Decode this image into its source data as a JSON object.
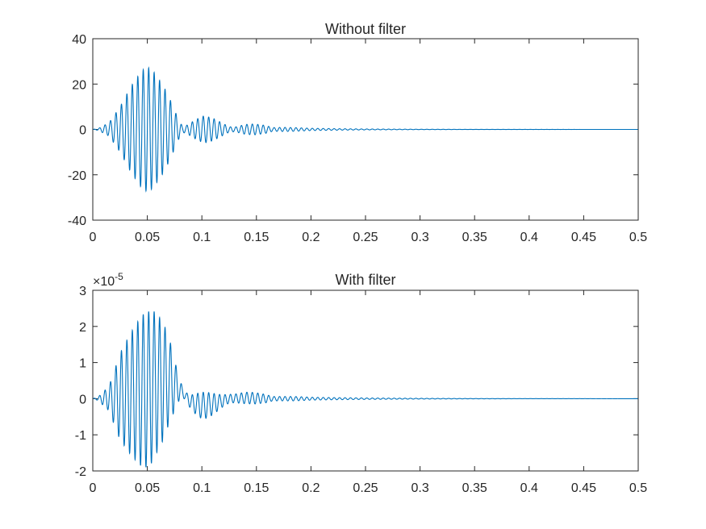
{
  "figure": {
    "background": "#ffffff",
    "axis_color": "#262626",
    "series_color": "#0072BD"
  },
  "chart_data": [
    {
      "type": "line",
      "title": "Without filter",
      "xlabel": "",
      "ylabel": "",
      "xlim": [
        0,
        0.5
      ],
      "ylim": [
        -40,
        40
      ],
      "xticks": [
        0,
        0.05,
        0.1,
        0.15,
        0.2,
        0.25,
        0.3,
        0.35,
        0.4,
        0.45,
        0.5
      ],
      "xtick_labels": [
        "0",
        "0.05",
        "0.1",
        "0.15",
        "0.2",
        "0.25",
        "0.3",
        "0.35",
        "0.4",
        "0.45",
        "0.5"
      ],
      "yticks": [
        -40,
        -20,
        0,
        20,
        40
      ],
      "ytick_labels": [
        "-40",
        "-20",
        "0",
        "20",
        "40"
      ],
      "y_exponent_base": "",
      "y_exponent": "",
      "grid": false,
      "series": [
        {
          "color": "#0072BD",
          "oscillation_frequency_hz": 200,
          "envelope": [
            [
              0,
              0
            ],
            [
              0.005,
              0.4
            ],
            [
              0.015,
              3
            ],
            [
              0.025,
              10
            ],
            [
              0.035,
              19
            ],
            [
              0.045,
              26
            ],
            [
              0.05,
              27.5
            ],
            [
              0.055,
              26
            ],
            [
              0.065,
              19
            ],
            [
              0.072,
              12
            ],
            [
              0.078,
              5
            ],
            [
              0.082,
              1.5
            ],
            [
              0.085,
              1.5
            ],
            [
              0.095,
              4.5
            ],
            [
              0.102,
              6
            ],
            [
              0.11,
              5
            ],
            [
              0.118,
              3
            ],
            [
              0.125,
              1.2
            ],
            [
              0.13,
              1
            ],
            [
              0.14,
              2.2
            ],
            [
              0.148,
              2.4
            ],
            [
              0.158,
              1.8
            ],
            [
              0.165,
              0.8
            ],
            [
              0.175,
              0.9
            ],
            [
              0.185,
              0.8
            ],
            [
              0.2,
              0.5
            ],
            [
              0.22,
              0.35
            ],
            [
              0.25,
              0.2
            ],
            [
              0.3,
              0.08
            ],
            [
              0.35,
              0.03
            ],
            [
              0.4,
              0.01
            ],
            [
              0.5,
              0
            ]
          ]
        }
      ]
    },
    {
      "type": "line",
      "title": "With filter",
      "xlabel": "",
      "ylabel": "",
      "xlim": [
        0,
        0.5
      ],
      "ylim": [
        -2,
        3
      ],
      "xticks": [
        0,
        0.05,
        0.1,
        0.15,
        0.2,
        0.25,
        0.3,
        0.35,
        0.4,
        0.45,
        0.5
      ],
      "xtick_labels": [
        "0",
        "0.05",
        "0.1",
        "0.15",
        "0.2",
        "0.25",
        "0.3",
        "0.35",
        "0.4",
        "0.45",
        "0.5"
      ],
      "yticks": [
        -2,
        -1,
        0,
        1,
        2,
        3
      ],
      "ytick_labels": [
        "-2",
        "-1",
        "0",
        "1",
        "2",
        "3"
      ],
      "y_exponent_base": "×10",
      "y_exponent": "-5",
      "grid": false,
      "series": [
        {
          "color": "#0072BD",
          "oscillation_frequency_hz": 200,
          "offset": 0.4,
          "envelope": [
            [
              0,
              0
            ],
            [
              0.005,
              0.05
            ],
            [
              0.015,
              0.35
            ],
            [
              0.025,
              1.2
            ],
            [
              0.035,
              1.7
            ],
            [
              0.045,
              2.1
            ],
            [
              0.05,
              2.15
            ],
            [
              0.055,
              2.1
            ],
            [
              0.065,
              1.6
            ],
            [
              0.072,
              1.0
            ],
            [
              0.078,
              0.4
            ],
            [
              0.082,
              0.15
            ],
            [
              0.085,
              0.1
            ],
            [
              0.095,
              0.3
            ],
            [
              0.102,
              0.38
            ],
            [
              0.11,
              0.3
            ],
            [
              0.118,
              0.18
            ],
            [
              0.125,
              0.12
            ],
            [
              0.13,
              0.12
            ],
            [
              0.14,
              0.16
            ],
            [
              0.148,
              0.16
            ],
            [
              0.158,
              0.12
            ],
            [
              0.165,
              0.06
            ],
            [
              0.175,
              0.06
            ],
            [
              0.185,
              0.06
            ],
            [
              0.2,
              0.04
            ],
            [
              0.22,
              0.03
            ],
            [
              0.25,
              0.02
            ],
            [
              0.3,
              0.01
            ],
            [
              0.35,
              0.004
            ],
            [
              0.4,
              0.002
            ],
            [
              0.5,
              0
            ]
          ],
          "offset_envelope": [
            [
              0,
              0
            ],
            [
              0.01,
              0
            ],
            [
              0.02,
              0.02
            ],
            [
              0.05,
              0.25
            ],
            [
              0.06,
              0.45
            ],
            [
              0.07,
              0.5
            ],
            [
              0.08,
              0.25
            ],
            [
              0.09,
              -0.1
            ],
            [
              0.1,
              -0.2
            ],
            [
              0.11,
              -0.15
            ],
            [
              0.125,
              0
            ],
            [
              0.14,
              0.02
            ],
            [
              0.16,
              0
            ],
            [
              0.5,
              0
            ]
          ]
        }
      ]
    }
  ]
}
